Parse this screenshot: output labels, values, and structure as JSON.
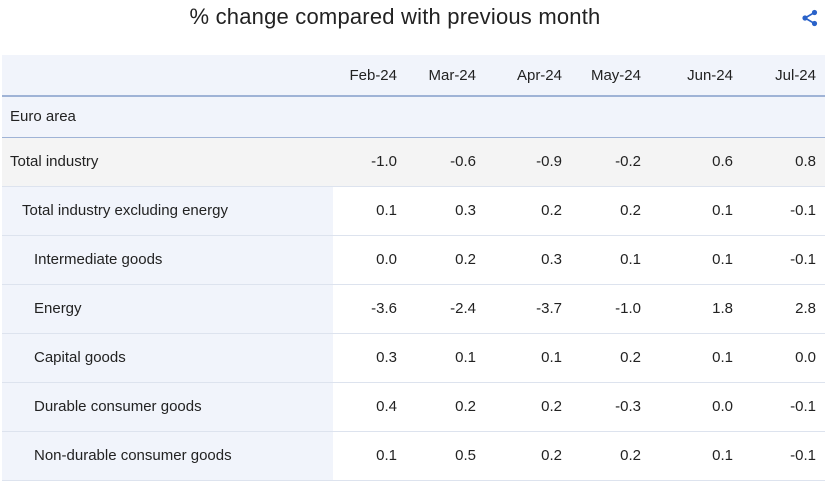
{
  "header": {
    "title": "% change compared with previous month"
  },
  "icons": {
    "share": "share-icon"
  },
  "colors": {
    "header_bg": "#f1f4fb",
    "rule": "#9fb3d6",
    "icon": "#2a62c9"
  },
  "chart_data": {
    "type": "table",
    "title": "% change compared with previous month",
    "group": "Euro area",
    "columns": [
      "Feb-24",
      "Mar-24",
      "Apr-24",
      "May-24",
      "Jun-24",
      "Jul-24"
    ],
    "rows": [
      {
        "label": "Total industry",
        "level": 0,
        "values": [
          "-1.0",
          "-0.6",
          "-0.9",
          "-0.2",
          "0.6",
          "0.8"
        ]
      },
      {
        "label": "Total industry excluding energy",
        "level": 1,
        "values": [
          "0.1",
          "0.3",
          "0.2",
          "0.2",
          "0.1",
          "-0.1"
        ]
      },
      {
        "label": "Intermediate goods",
        "level": 2,
        "values": [
          "0.0",
          "0.2",
          "0.3",
          "0.1",
          "0.1",
          "-0.1"
        ]
      },
      {
        "label": "Energy",
        "level": 2,
        "values": [
          "-3.6",
          "-2.4",
          "-3.7",
          "-1.0",
          "1.8",
          "2.8"
        ]
      },
      {
        "label": "Capital goods",
        "level": 2,
        "values": [
          "0.3",
          "0.1",
          "0.1",
          "0.2",
          "0.1",
          "0.0"
        ]
      },
      {
        "label": "Durable consumer goods",
        "level": 2,
        "values": [
          "0.4",
          "0.2",
          "0.2",
          "-0.3",
          "0.0",
          "-0.1"
        ]
      },
      {
        "label": "Non-durable consumer goods",
        "level": 2,
        "values": [
          "0.1",
          "0.5",
          "0.2",
          "0.2",
          "0.1",
          "-0.1"
        ]
      }
    ]
  }
}
